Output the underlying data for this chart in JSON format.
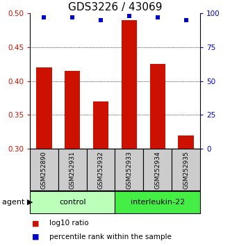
{
  "title": "GDS3226 / 43069",
  "categories": [
    "GSM252890",
    "GSM252931",
    "GSM252932",
    "GSM252933",
    "GSM252934",
    "GSM252935"
  ],
  "bar_values": [
    0.42,
    0.415,
    0.37,
    0.49,
    0.425,
    0.32
  ],
  "percentile_values": [
    97,
    97,
    95,
    98,
    97,
    95
  ],
  "bar_color": "#cc1100",
  "dot_color": "#0000cc",
  "ylim_left": [
    0.3,
    0.5
  ],
  "ylim_right": [
    0,
    100
  ],
  "yticks_left": [
    0.3,
    0.35,
    0.4,
    0.45,
    0.5
  ],
  "yticks_right": [
    0,
    25,
    50,
    75,
    100
  ],
  "grid_values": [
    0.35,
    0.4,
    0.45
  ],
  "groups": [
    {
      "label": "control",
      "indices": [
        0,
        1,
        2
      ],
      "color": "#bbffbb"
    },
    {
      "label": "interleukin-22",
      "indices": [
        3,
        4,
        5
      ],
      "color": "#44ee44"
    }
  ],
  "agent_label": "agent",
  "legend_items": [
    {
      "label": "log10 ratio",
      "color": "#cc1100"
    },
    {
      "label": "percentile rank within the sample",
      "color": "#0000cc"
    }
  ],
  "bar_width": 0.55,
  "title_fontsize": 11,
  "tick_fontsize": 7.5,
  "label_fontsize": 7.5,
  "group_label_fontsize": 8,
  "legend_fontsize": 7.5,
  "agent_fontsize": 8,
  "sample_fontsize": 6.5,
  "label_box_color": "#cccccc",
  "background_color": "#ffffff"
}
